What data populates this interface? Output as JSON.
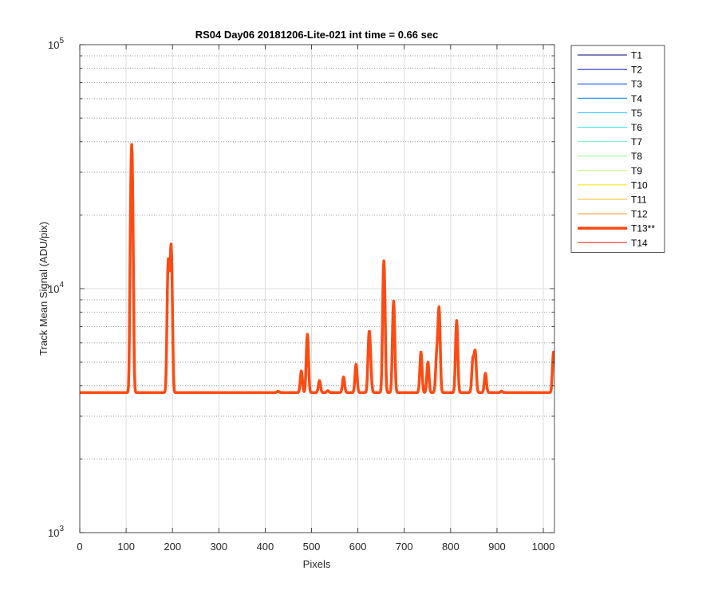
{
  "chart_data": {
    "type": "line",
    "title": "RS04 Day06 20181206-Lite-021 int time = 0.66 sec",
    "xlabel": "Pixels",
    "ylabel": "Track Mean Signal (ADU/pix)",
    "xlim": [
      0,
      1024
    ],
    "ylim": [
      1000,
      100000
    ],
    "yscale": "log",
    "grid": true,
    "legend_position": "outside-top-right",
    "x_ticks": [
      0,
      100,
      200,
      300,
      400,
      500,
      600,
      700,
      800,
      900,
      1000
    ],
    "x_tick_labels": [
      "0",
      "100",
      "200",
      "300",
      "400",
      "500",
      "600",
      "700",
      "800",
      "900",
      "1000"
    ],
    "y_ticks": [
      1000,
      10000,
      100000
    ],
    "y_tick_base": "10",
    "y_tick_exponents": [
      "3",
      "4",
      "5"
    ],
    "baseline": 3750,
    "peak_width": 2.2,
    "peaks": [
      {
        "x": 112,
        "y": 39000
      },
      {
        "x": 191,
        "y": 13000
      },
      {
        "x": 197,
        "y": 15000
      },
      {
        "x": 428,
        "y": 3800
      },
      {
        "x": 478,
        "y": 4600
      },
      {
        "x": 491,
        "y": 6500
      },
      {
        "x": 517,
        "y": 4200
      },
      {
        "x": 535,
        "y": 3820
      },
      {
        "x": 569,
        "y": 4350
      },
      {
        "x": 596,
        "y": 4900
      },
      {
        "x": 624,
        "y": 6300
      },
      {
        "x": 627,
        "y": 4700
      },
      {
        "x": 656,
        "y": 13000
      },
      {
        "x": 677,
        "y": 8900
      },
      {
        "x": 736,
        "y": 5500
      },
      {
        "x": 751,
        "y": 5000
      },
      {
        "x": 770,
        "y": 5300
      },
      {
        "x": 775,
        "y": 8300
      },
      {
        "x": 813,
        "y": 7400
      },
      {
        "x": 848,
        "y": 5100
      },
      {
        "x": 853,
        "y": 5500
      },
      {
        "x": 875,
        "y": 4500
      },
      {
        "x": 910,
        "y": 3800
      },
      {
        "x": 1022,
        "y": 5500
      }
    ],
    "series": [
      {
        "name": "T1",
        "color": "#00007f",
        "width": 1,
        "highlight": false
      },
      {
        "name": "T2",
        "color": "#0012d6",
        "width": 1,
        "highlight": false
      },
      {
        "name": "T3",
        "color": "#0048ff",
        "width": 1,
        "highlight": false
      },
      {
        "name": "T4",
        "color": "#007ff7",
        "width": 1,
        "highlight": false
      },
      {
        "name": "T5",
        "color": "#19b5ff",
        "width": 1,
        "highlight": false
      },
      {
        "name": "T6",
        "color": "#2ee6e6",
        "width": 1,
        "highlight": false
      },
      {
        "name": "T7",
        "color": "#6bf3c3",
        "width": 1,
        "highlight": false
      },
      {
        "name": "T8",
        "color": "#90f390",
        "width": 1,
        "highlight": false
      },
      {
        "name": "T9",
        "color": "#c3f36b",
        "width": 1,
        "highlight": false
      },
      {
        "name": "T10",
        "color": "#f3e600",
        "width": 1,
        "highlight": false
      },
      {
        "name": "T11",
        "color": "#f7bb19",
        "width": 1,
        "highlight": false
      },
      {
        "name": "T12",
        "color": "#ff8f1f",
        "width": 1,
        "highlight": false
      },
      {
        "name": "T13**",
        "color": "#ff4a12",
        "width": 3.5,
        "highlight": true
      },
      {
        "name": "T14",
        "color": "#ff1a1a",
        "width": 1,
        "highlight": false
      }
    ]
  }
}
